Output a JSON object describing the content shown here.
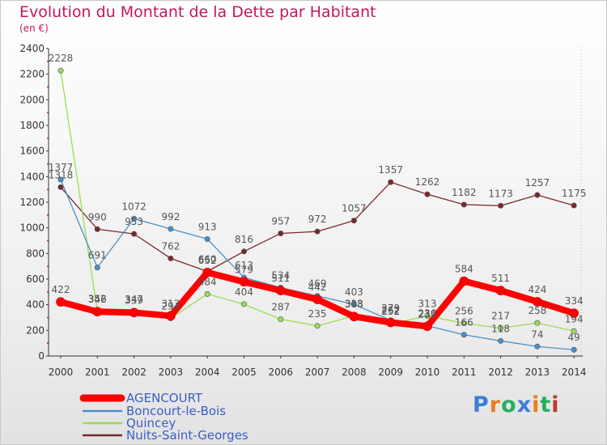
{
  "title": "Evolution du Montant de la Dette par Habitant",
  "subtitle": "(en €)",
  "logo_text": "Proxiti",
  "chart_data": {
    "type": "line",
    "title": "Evolution du Montant de la Dette par Habitant",
    "ylabel": "(en €)",
    "categories": [
      "2000",
      "2001",
      "2002",
      "2003",
      "2004",
      "2005",
      "2006",
      "2007",
      "2008",
      "2009",
      "2010",
      "2011",
      "2012",
      "2013",
      "2014"
    ],
    "ylim": [
      0,
      2400
    ],
    "yticks": [
      0,
      200,
      400,
      600,
      800,
      1000,
      1200,
      1400,
      1600,
      1800,
      2000,
      2200,
      2400
    ],
    "grid": false,
    "legend_position": "bottom-left",
    "series": [
      {
        "name": "AGENCOURT",
        "color": "#ff0000",
        "values": [
          422,
          346,
          339,
          313,
          652,
          579,
          511,
          442,
          308,
          262,
          232,
          584,
          511,
          424,
          334
        ]
      },
      {
        "name": "Boncourt-le-Bois",
        "color": "#4a90c8",
        "values": [
          1377,
          691,
          1072,
          992,
          913,
          613,
          534,
          469,
          403,
          279,
          236,
          166,
          118,
          74,
          49
        ]
      },
      {
        "name": "Quincey",
        "color": "#99dd55",
        "values": [
          2228,
          352,
          347,
          294,
          484,
          404,
          287,
          235,
          313,
          252,
          313,
          256,
          217,
          258,
          194
        ]
      },
      {
        "name": "Nuits-Saint-Georges",
        "color": "#7a2828",
        "values": [
          1318,
          990,
          953,
          762,
          660,
          816,
          957,
          972,
          1057,
          1357,
          1262,
          1182,
          1173,
          1257,
          1175
        ]
      }
    ]
  }
}
